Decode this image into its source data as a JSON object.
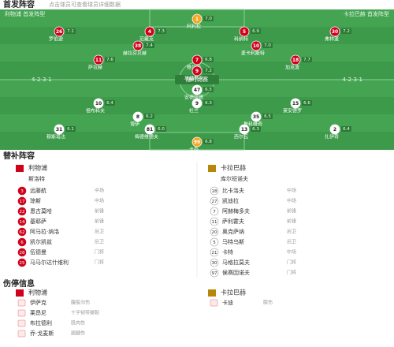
{
  "header": {
    "title": "首发阵容",
    "subtitle": "点击球员可查看球员详细数据"
  },
  "pitch": {
    "home_label": "利物浦 首发阵型",
    "away_label": "卡拉巴赫 首发阵型",
    "center": "随时比赛",
    "home_formation": "4-2-3-1",
    "away_formation": "4-2-3-1",
    "home_players": [
      {
        "number": "1",
        "name": "阿利松",
        "rating": "7.0"
      },
      {
        "number": "30",
        "name": "弗林蓬",
        "rating": "7.2"
      },
      {
        "number": "5",
        "name": "科纳特",
        "rating": "6.9"
      },
      {
        "number": "4",
        "name": "范戴克",
        "rating": "7.3"
      },
      {
        "number": "26",
        "name": "罗伯逊",
        "rating": "7.1"
      },
      {
        "number": "38",
        "name": "赫拉芬贝赫",
        "rating": "7.4"
      },
      {
        "number": "10",
        "name": "麦卡利斯特",
        "rating": "7.0"
      },
      {
        "number": "11",
        "name": "萨拉赫",
        "rating": "7.6"
      },
      {
        "number": "7",
        "name": "维尔茨",
        "rating": "6.8"
      },
      {
        "number": "18",
        "name": "加克波",
        "rating": "7.7"
      },
      {
        "number": "9",
        "name": "埃基蒂克",
        "rating": "7.2"
      }
    ],
    "away_players": [
      {
        "number": "47",
        "name": "安德拉德",
        "rating": "6.5"
      },
      {
        "number": "10",
        "name": "祖布科夫",
        "rating": "6.4"
      },
      {
        "number": "9",
        "name": "杜兰",
        "rating": "6.3"
      },
      {
        "number": "15",
        "name": "莱安德罗",
        "rating": "6.6"
      },
      {
        "number": "8",
        "name": "博伊",
        "rating": "6.2"
      },
      {
        "number": "35",
        "name": "詹科维奇",
        "rating": "6.5"
      },
      {
        "number": "31",
        "name": "穆斯塔法",
        "rating": "6.1"
      },
      {
        "number": "81",
        "name": "梅德维德夫",
        "rating": "6.0"
      },
      {
        "number": "13",
        "name": "西尔瓦",
        "rating": "6.3"
      },
      {
        "number": "2",
        "name": "扎伊奇",
        "rating": "6.4"
      },
      {
        "number": "99",
        "name": "卡乔",
        "rating": "6.8"
      }
    ]
  },
  "subs": {
    "title": "替补阵容",
    "home": {
      "team": "利物浦",
      "coach": "斯洛特",
      "players": [
        {
          "number": "3",
          "name": "远藤航",
          "position": "中场"
        },
        {
          "number": "17",
          "name": "琼斯",
          "position": "中场"
        },
        {
          "number": "22",
          "name": "恩古莫哈",
          "position": "前锋"
        },
        {
          "number": "14",
          "name": "基耶萨",
          "position": "前锋"
        },
        {
          "number": "62",
          "name": "阿马拉·纳洛",
          "position": "后卫"
        },
        {
          "number": "6",
          "name": "凯尔凯兹",
          "position": "后卫"
        },
        {
          "number": "28",
          "name": "伍德曼",
          "position": "门将"
        },
        {
          "number": "25",
          "name": "马马尔达什维利",
          "position": "门将"
        }
      ]
    },
    "away": {
      "team": "卡拉巴赫",
      "coach": "库尔班诺夫",
      "players": [
        {
          "number": "18",
          "name": "比卡洛夫",
          "position": "中场"
        },
        {
          "number": "27",
          "name": "凯迪拉",
          "position": "中场"
        },
        {
          "number": "7",
          "name": "阿赫梅多夫",
          "position": "前锋"
        },
        {
          "number": "11",
          "name": "萨利霍夫",
          "position": "前锋"
        },
        {
          "number": "20",
          "name": "奥克萨纳",
          "position": "后卫"
        },
        {
          "number": "5",
          "name": "马特乌斯",
          "position": "后卫"
        },
        {
          "number": "21",
          "name": "卡特",
          "position": "中场"
        },
        {
          "number": "30",
          "name": "马格拉莫夫",
          "position": "门将"
        },
        {
          "number": "97",
          "name": "侯赛因诺夫",
          "position": "门将"
        }
      ]
    }
  },
  "injuries": {
    "title": "伤停信息",
    "home": {
      "team": "利物浦",
      "players": [
        {
          "name": "伊萨克",
          "reason": "腹股沟伤"
        },
        {
          "name": "莱昂尼",
          "reason": "十字韧带撕裂"
        },
        {
          "name": "布拉德利",
          "reason": "肌肉伤"
        },
        {
          "name": "乔·戈麦斯",
          "reason": "跟腱伤"
        }
      ]
    },
    "away": {
      "team": "卡拉巴赫",
      "players": [
        {
          "name": "卡迪",
          "reason": "膝伤"
        }
      ]
    }
  }
}
